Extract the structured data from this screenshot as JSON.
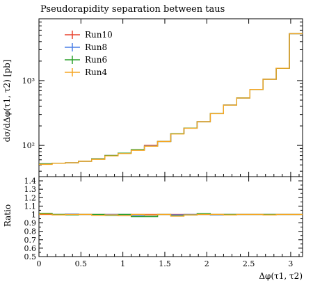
{
  "chart_data": [
    {
      "panel": "main",
      "type": "line",
      "title": "Pseudorapidity separation between taus",
      "ylabel": "dσ/dΔφ(τ1, τ2) [pb]",
      "xlabel": "",
      "y_scale": "log",
      "xlim": [
        0,
        3.1416
      ],
      "ylim": [
        33,
        9000
      ],
      "y_major_ticks": [
        {
          "value": 100,
          "label": "10²"
        },
        {
          "value": 1000,
          "label": "10³"
        }
      ],
      "legend_position": "top-left",
      "bin_edges": [
        0,
        0.1571,
        0.3142,
        0.4712,
        0.6283,
        0.7854,
        0.9425,
        1.0996,
        1.2566,
        1.4137,
        1.5708,
        1.7279,
        1.885,
        2.042,
        2.1991,
        2.3562,
        2.5133,
        2.6704,
        2.8274,
        2.9845,
        3.1416
      ],
      "series": [
        {
          "name": "Run10",
          "color": "#e8432e",
          "values": [
            52,
            53,
            54,
            57,
            62,
            70,
            76,
            85,
            100,
            115,
            152,
            185,
            232,
            310,
            420,
            540,
            730,
            1050,
            1550,
            5300
          ]
        },
        {
          "name": "Run8",
          "color": "#4a7fe6",
          "values": [
            52,
            53,
            54,
            57,
            62,
            70,
            76,
            85,
            98,
            115,
            152,
            185,
            232,
            310,
            420,
            540,
            730,
            1050,
            1550,
            5300
          ]
        },
        {
          "name": "Run6",
          "color": "#2ca02c",
          "values": [
            52,
            53,
            54,
            57,
            62,
            70,
            76,
            86,
            97,
            115,
            152,
            185,
            232,
            310,
            420,
            540,
            730,
            1050,
            1550,
            5300
          ]
        },
        {
          "name": "Run4",
          "color": "#f5a623",
          "values": [
            51,
            53,
            54,
            57,
            61,
            69,
            75,
            84,
            97,
            115,
            150,
            184,
            232,
            309,
            419,
            539,
            729,
            1049,
            1549,
            5300
          ]
        }
      ]
    },
    {
      "panel": "ratio",
      "type": "line",
      "ylabel": "Ratio",
      "xlabel": "Δφ(τ1, τ2)",
      "xlim": [
        0,
        3.1416
      ],
      "ylim": [
        0.5,
        1.45
      ],
      "x_ticks": [
        0,
        0.5,
        1,
        1.5,
        2,
        2.5,
        3
      ],
      "y_ticks": [
        0.5,
        0.6,
        0.7,
        0.8,
        0.9,
        1,
        1.1,
        1.2,
        1.3,
        1.4
      ],
      "bin_edges": [
        0,
        0.1571,
        0.3142,
        0.4712,
        0.6283,
        0.7854,
        0.9425,
        1.0996,
        1.2566,
        1.4137,
        1.5708,
        1.7279,
        1.885,
        2.042,
        2.1991,
        2.3562,
        2.5133,
        2.6704,
        2.8274,
        2.9845,
        3.1416
      ],
      "series": [
        {
          "name": "Run10",
          "color": "#e8432e",
          "values": [
            1.0,
            1.0,
            1.0,
            1.0,
            1.0,
            1.0,
            1.0,
            1.0,
            1.0,
            1.0,
            1.0,
            1.0,
            1.0,
            1.0,
            1.0,
            1.0,
            1.0,
            1.0,
            1.0,
            1.0
          ]
        },
        {
          "name": "Run8",
          "color": "#4a7fe6",
          "values": [
            1.01,
            1.0,
            1.005,
            1.0,
            0.995,
            1.0,
            1.0,
            0.985,
            0.98,
            1.0,
            0.995,
            1.0,
            1.0,
            0.995,
            1.0,
            1.0,
            1.0,
            1.0,
            1.0,
            1.0
          ]
        },
        {
          "name": "Run6",
          "color": "#2ca02c",
          "values": [
            1.015,
            1.0,
            0.995,
            1.0,
            1.0,
            0.99,
            1.0,
            0.975,
            0.975,
            1.0,
            0.985,
            0.995,
            1.01,
            1.0,
            1.0,
            1.0,
            1.0,
            1.0,
            1.0,
            1.0
          ]
        },
        {
          "name": "Run4",
          "color": "#f5a623",
          "values": [
            1.005,
            0.995,
            1.0,
            1.0,
            0.99,
            0.995,
            0.985,
            1.0,
            0.995,
            1.0,
            0.98,
            0.995,
            1.0,
            1.0,
            0.995,
            1.0,
            1.0,
            0.995,
            1.0,
            1.0
          ]
        }
      ]
    }
  ]
}
